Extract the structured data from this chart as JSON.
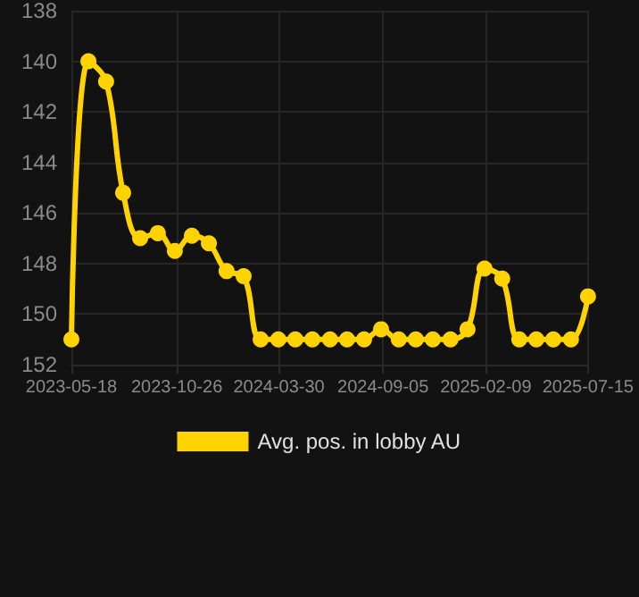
{
  "chart_data": {
    "type": "line",
    "x": [
      "2023-05-18",
      "2023-06-13",
      "2023-07-10",
      "2023-08-05",
      "2023-08-31",
      "2023-09-27",
      "2023-10-23",
      "2023-11-18",
      "2023-12-14",
      "2024-01-10",
      "2024-02-05",
      "2024-03-02",
      "2024-03-29",
      "2024-04-24",
      "2024-05-20",
      "2024-06-16",
      "2024-07-12",
      "2024-08-07",
      "2024-09-02",
      "2024-09-29",
      "2024-10-25",
      "2024-11-20",
      "2024-12-17",
      "2025-01-12",
      "2025-02-07",
      "2025-03-06",
      "2025-04-01",
      "2025-04-27",
      "2025-05-23",
      "2025-06-19",
      "2025-07-15"
    ],
    "series": [
      {
        "name": "Avg. pos. in lobby AU",
        "color": "#ffd300",
        "values": [
          151,
          140,
          140.8,
          145.2,
          147,
          146.8,
          147.5,
          146.9,
          147.2,
          148.3,
          148.5,
          151,
          151,
          151,
          151,
          151,
          151,
          151,
          150.6,
          151,
          151,
          151,
          151,
          150.6,
          148.2,
          148.6,
          151,
          151,
          151,
          151,
          149.3
        ]
      }
    ],
    "xlim": [
      "2023-05-18",
      "2025-07-15"
    ],
    "xticks": [
      "2023-05-18",
      "2023-10-26",
      "2024-03-30",
      "2024-09-05",
      "2025-02-09",
      "2025-07-15"
    ],
    "ylim": [
      152,
      138
    ],
    "yticks": [
      138,
      140,
      142,
      144,
      146,
      148,
      150,
      152
    ],
    "grid": true,
    "legend": "bottom",
    "marker": "circle",
    "line_style": "solid"
  }
}
